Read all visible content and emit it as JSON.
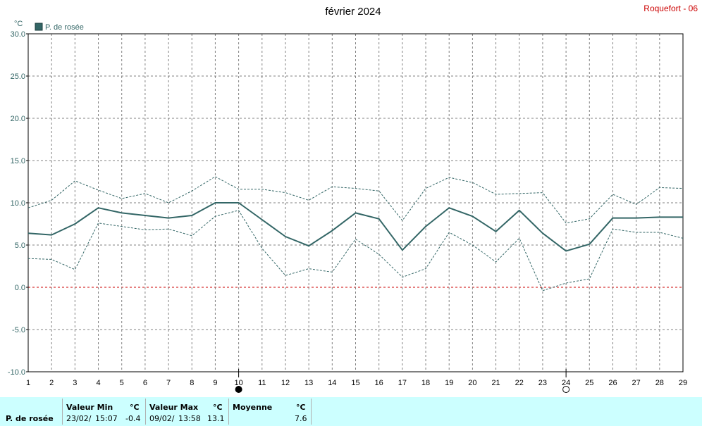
{
  "header": {
    "title": "février 2024",
    "station": "Roquefort - 06"
  },
  "legend": {
    "label": "P. de rosée",
    "color": "#336666"
  },
  "chart_data": {
    "type": "line",
    "unit_label": "°C",
    "ylim": [
      -10,
      30
    ],
    "y_ticks": [
      "30.0",
      "25.0",
      "20.0",
      "15.0",
      "10.0",
      "5.0",
      "0.0",
      "-5.0",
      "-10.0"
    ],
    "x_ticks": [
      "1",
      "2",
      "3",
      "4",
      "5",
      "6",
      "7",
      "8",
      "9",
      "10",
      "11",
      "12",
      "13",
      "14",
      "15",
      "16",
      "17",
      "18",
      "19",
      "20",
      "21",
      "22",
      "23",
      "24",
      "25",
      "26",
      "27",
      "28",
      "29"
    ],
    "xlim": [
      1,
      29
    ],
    "grid": true,
    "zero_line_color": "#cc0000",
    "moon_phases": [
      {
        "day": 10,
        "phase": "new-moon"
      },
      {
        "day": 24,
        "phase": "full-moon"
      }
    ],
    "series": [
      {
        "name": "P. de rosée",
        "style": "solid",
        "color": "#336666",
        "values": [
          6.4,
          6.2,
          7.5,
          9.4,
          8.8,
          8.5,
          8.2,
          8.5,
          10.0,
          10.0,
          8.0,
          6.0,
          4.9,
          6.7,
          8.8,
          8.1,
          4.4,
          7.2,
          9.4,
          8.4,
          6.6,
          9.1,
          6.4,
          4.3,
          5.1,
          8.2,
          8.2,
          8.3,
          8.3
        ]
      },
      {
        "style": "dashed",
        "color": "#336666",
        "values": [
          9.4,
          10.3,
          12.6,
          11.5,
          10.5,
          11.1,
          10.0,
          11.4,
          13.1,
          11.6,
          11.6,
          11.2,
          10.3,
          11.9,
          11.7,
          11.4,
          7.9,
          11.7,
          13.0,
          12.4,
          11.0,
          11.1,
          11.2,
          7.6,
          8.1,
          11.0,
          9.8,
          11.8,
          11.7
        ]
      },
      {
        "style": "dashed",
        "color": "#336666",
        "values": [
          3.4,
          3.3,
          2.1,
          7.6,
          7.2,
          6.8,
          6.9,
          6.1,
          8.4,
          9.1,
          4.6,
          1.4,
          2.2,
          1.8,
          5.7,
          3.9,
          1.2,
          2.2,
          6.5,
          5.0,
          3.0,
          5.8,
          -0.4,
          0.5,
          1.0,
          6.9,
          6.5,
          6.5,
          5.8
        ]
      }
    ]
  },
  "stats": {
    "row_label": "P. de rosée",
    "min": {
      "header": "Valeur Min",
      "unit": "°C",
      "date": "23/02/",
      "time": "15:07",
      "value": "-0.4"
    },
    "max": {
      "header": "Valeur Max",
      "unit": "°C",
      "date": "09/02/",
      "time": "13:58",
      "value": "13.1"
    },
    "avg": {
      "header": "Moyenne",
      "unit": "°C",
      "value": "7.6"
    }
  }
}
